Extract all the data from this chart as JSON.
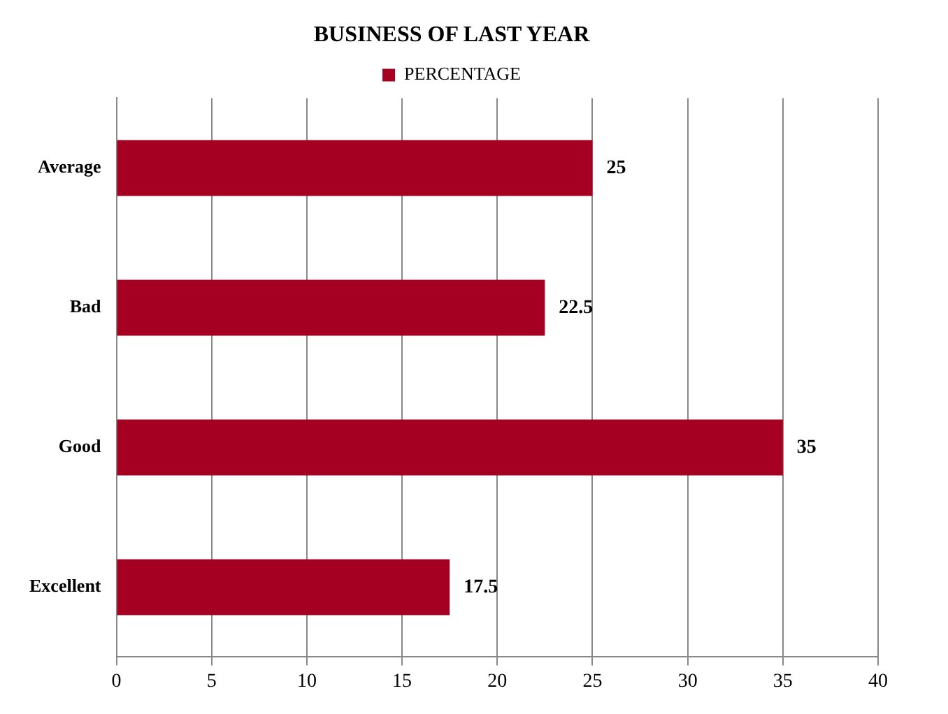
{
  "chart_data": {
    "type": "bar",
    "title": "BUSINESS OF LAST YEAR",
    "orientation": "horizontal",
    "categories": [
      "Average",
      "Bad",
      "Good",
      "Excellent"
    ],
    "series": [
      {
        "name": "PERCENTAGE",
        "color": "#a50021",
        "values": [
          25,
          22.5,
          35,
          17.5
        ]
      }
    ],
    "xlim": [
      0,
      40
    ],
    "xticks": [
      0,
      5,
      10,
      15,
      20,
      25,
      30,
      35,
      40
    ],
    "grid": "x",
    "legend": "top",
    "data_labels": true
  }
}
